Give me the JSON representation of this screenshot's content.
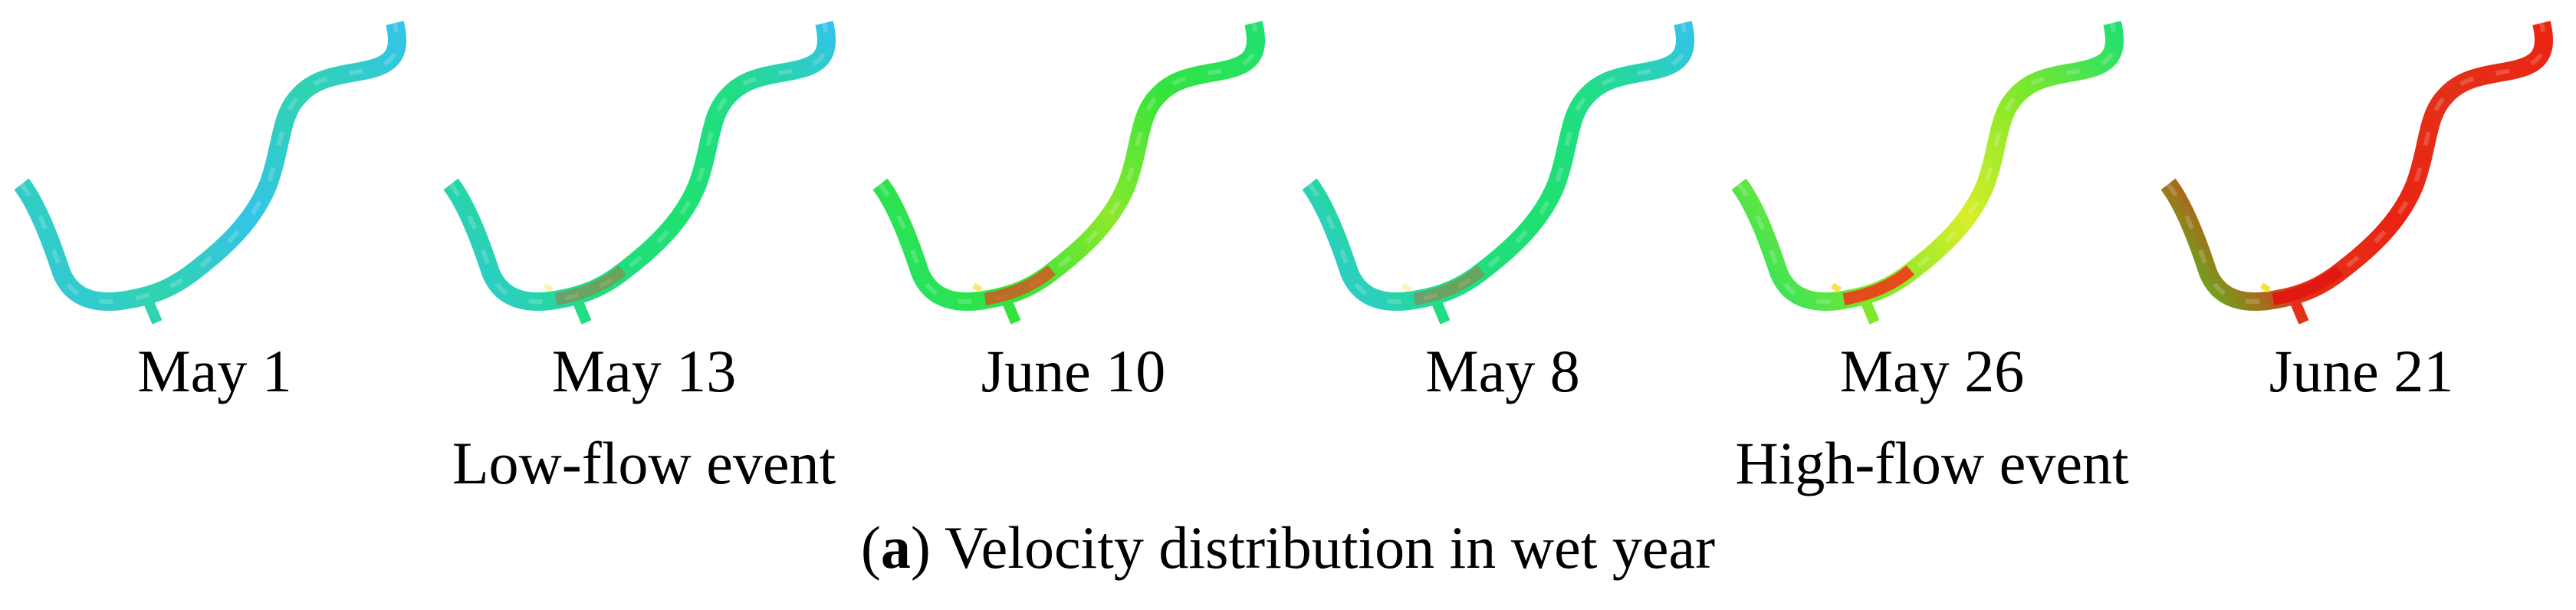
{
  "panels": [
    {
      "date": "May 1",
      "colors": [
        "#33c4e8",
        "#2fd3b0",
        "#33c4e8",
        "#2fd3b0",
        "#33c4e8"
      ],
      "hotspot": "none"
    },
    {
      "date": "May 13",
      "colors": [
        "#33c4e8",
        "#21dd86",
        "#1fe070",
        "#21dd86",
        "#33c4e8"
      ],
      "hotspot": "light"
    },
    {
      "date": "June 10",
      "colors": [
        "#1fe070",
        "#34e43c",
        "#8de82c",
        "#34e43c",
        "#1fe070"
      ],
      "hotspot": "medium"
    },
    {
      "date": "May 8",
      "colors": [
        "#33c4e8",
        "#21dd86",
        "#1fe070",
        "#21dd86",
        "#33c4e8"
      ],
      "hotspot": "light"
    },
    {
      "date": "May 26",
      "colors": [
        "#1fe070",
        "#7ee82a",
        "#d8ee2a",
        "#7ee82a",
        "#1fe070"
      ],
      "hotspot": "strong"
    },
    {
      "date": "June 21",
      "colors": [
        "#33dd22",
        "#e43018",
        "#ea2412",
        "#e43018",
        "#ea2412"
      ],
      "hotspot": "extreme"
    }
  ],
  "events": [
    {
      "label": "Low-flow event"
    },
    {
      "label": "High-flow event"
    }
  ],
  "caption": {
    "letter": "a",
    "text": " Velocity distribution in wet year"
  }
}
